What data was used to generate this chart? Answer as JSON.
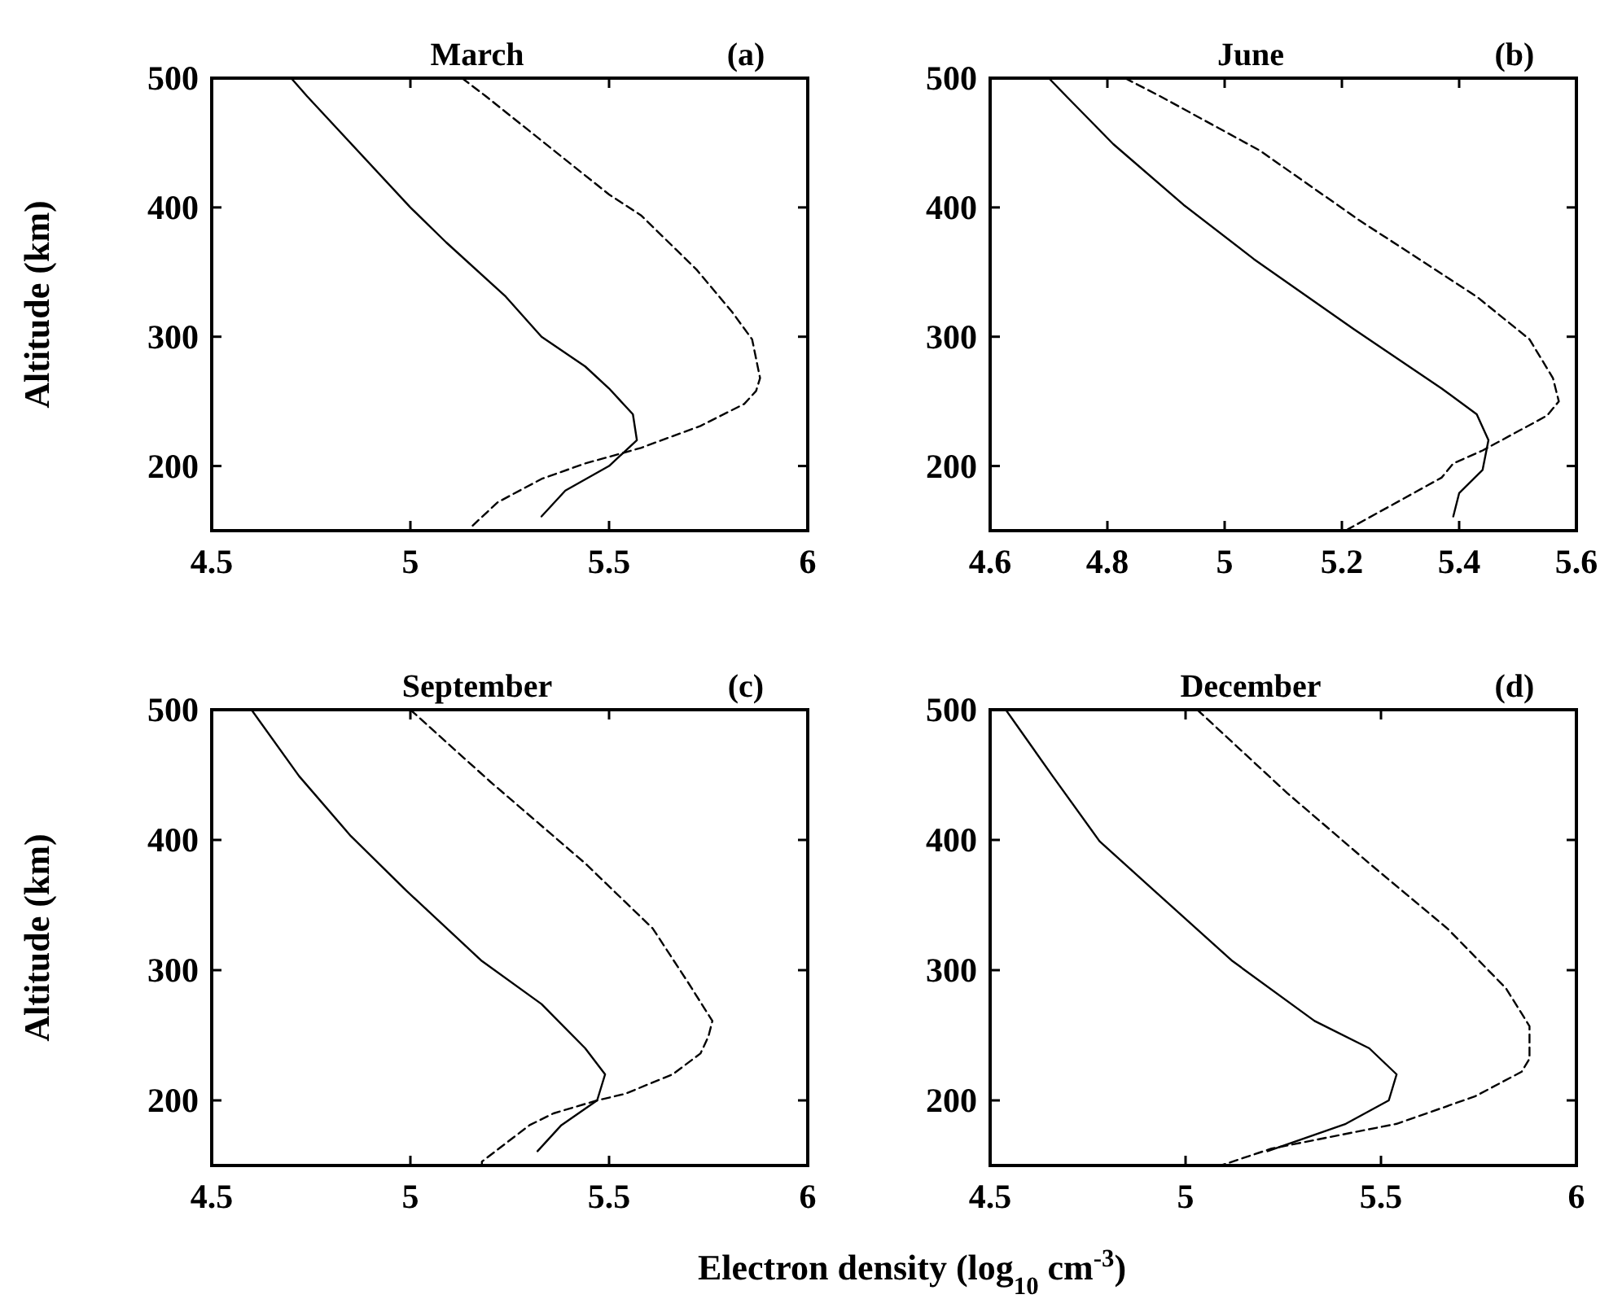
{
  "chart_data": [
    {
      "type": "line",
      "title": "March",
      "annotations": [
        "(a)"
      ],
      "ylabel": "Altitude (km)",
      "xlim": [
        4.5,
        6
      ],
      "xticks": [
        4.5,
        5,
        5.5,
        6
      ],
      "ylim": [
        150,
        500
      ],
      "yticks": [
        200,
        300,
        400,
        500
      ],
      "grid": false,
      "marker": "none",
      "series": [
        {
          "color": "#000000",
          "line_style": "solid",
          "x": [
            4.7,
            4.74,
            5.0,
            5.09,
            5.24,
            5.33,
            5.44,
            5.5,
            5.56,
            5.57,
            5.5,
            5.39,
            5.33
          ],
          "values": [
            500,
            486,
            400,
            373,
            331,
            300,
            277,
            260,
            240,
            220,
            200,
            181,
            161
          ]
        },
        {
          "color": "#000000",
          "line_style": "dashed",
          "x": [
            5.13,
            5.19,
            5.5,
            5.58,
            5.72,
            5.81,
            5.86,
            5.88,
            5.87,
            5.84,
            5.73,
            5.58,
            5.44,
            5.33,
            5.22,
            5.15
          ],
          "values": [
            500,
            486,
            410,
            394,
            352,
            319,
            298,
            268,
            258,
            248,
            231,
            214,
            202,
            190,
            172,
            152
          ]
        }
      ]
    },
    {
      "type": "line",
      "title": "June",
      "annotations": [
        "(b)"
      ],
      "xlim": [
        4.6,
        5.6
      ],
      "xticks": [
        4.6,
        4.8,
        5,
        5.2,
        5.4,
        5.6
      ],
      "ylim": [
        150,
        500
      ],
      "yticks": [
        200,
        300,
        400,
        500
      ],
      "grid": false,
      "marker": "none",
      "series": [
        {
          "color": "#000000",
          "line_style": "solid",
          "x": [
            4.7,
            4.73,
            4.81,
            4.93,
            5.05,
            5.22,
            5.37,
            5.43,
            5.45,
            5.44,
            5.4,
            5.39
          ],
          "values": [
            500,
            486,
            449,
            402,
            360,
            306,
            260,
            240,
            220,
            197,
            179,
            161
          ]
        },
        {
          "color": "#000000",
          "line_style": "dashed",
          "x": [
            4.83,
            4.89,
            5.06,
            5.23,
            5.43,
            5.52,
            5.56,
            5.57,
            5.55,
            5.44,
            5.39,
            5.37,
            5.21
          ],
          "values": [
            500,
            486,
            444,
            390,
            331,
            298,
            268,
            250,
            239,
            212,
            202,
            191,
            151
          ]
        }
      ]
    },
    {
      "type": "line",
      "title": "September",
      "annotations": [
        "(c)"
      ],
      "ylabel": "Altitude (km)",
      "xlabel": "Electron density (log$_{10}$ cm$^{-3}$)",
      "xlim": [
        4.5,
        6
      ],
      "xticks": [
        4.5,
        5,
        5.5,
        6
      ],
      "ylim": [
        150,
        500
      ],
      "yticks": [
        200,
        300,
        400,
        500
      ],
      "grid": false,
      "marker": "none",
      "series": [
        {
          "color": "#000000",
          "line_style": "solid",
          "x": [
            4.6,
            4.72,
            4.85,
            4.99,
            5.18,
            5.33,
            5.44,
            5.49,
            5.47,
            5.38,
            5.32
          ],
          "values": [
            500,
            449,
            403,
            361,
            307,
            274,
            240,
            220,
            200,
            181,
            161
          ]
        },
        {
          "color": "#000000",
          "line_style": "dashed",
          "x": [
            5.0,
            5.2,
            5.44,
            5.61,
            5.7,
            5.76,
            5.75,
            5.73,
            5.66,
            5.54,
            5.47,
            5.36,
            5.3,
            5.18,
            5.18
          ],
          "values": [
            500,
            445,
            382,
            332,
            290,
            261,
            249,
            236,
            220,
            205,
            200,
            190,
            181,
            153,
            150
          ]
        }
      ]
    },
    {
      "type": "line",
      "title": "December",
      "annotations": [
        "(d)"
      ],
      "xlim": [
        4.5,
        6
      ],
      "xticks": [
        4.5,
        5,
        5.5,
        6
      ],
      "ylim": [
        150,
        500
      ],
      "yticks": [
        200,
        300,
        400,
        500
      ],
      "grid": false,
      "marker": "none",
      "series": [
        {
          "color": "#000000",
          "line_style": "solid",
          "x": [
            4.54,
            4.66,
            4.78,
            4.92,
            5.12,
            5.33,
            5.47,
            5.54,
            5.52,
            5.41,
            5.21
          ],
          "values": [
            500,
            449,
            399,
            361,
            307,
            261,
            240,
            220,
            200,
            182,
            161
          ]
        },
        {
          "color": "#000000",
          "line_style": "dashed",
          "x": [
            5.03,
            5.26,
            5.47,
            5.67,
            5.82,
            5.88,
            5.88,
            5.86,
            5.74,
            5.54,
            5.22,
            5.19,
            5.09
          ],
          "values": [
            500,
            436,
            382,
            332,
            286,
            257,
            232,
            222,
            203,
            182,
            163,
            160,
            150
          ]
        }
      ]
    }
  ]
}
